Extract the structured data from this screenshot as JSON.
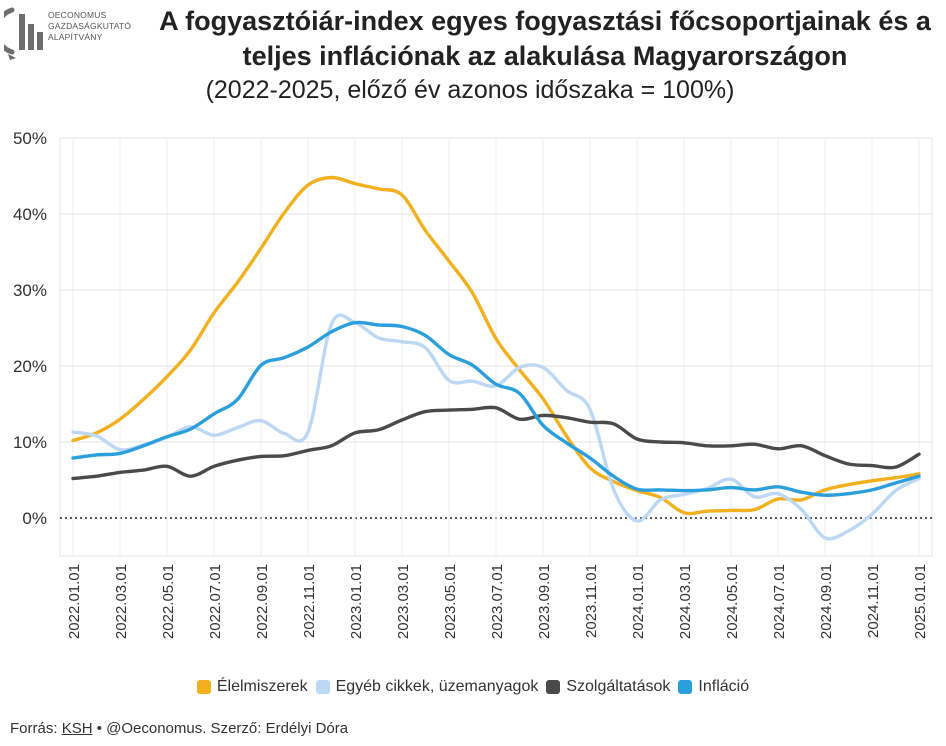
{
  "logo": {
    "lines": [
      "OECONOMUS",
      "GAZDASÁGKUTATÓ",
      "ALAPÍTVÁNY"
    ]
  },
  "header": {
    "title_line1": "A fogyasztóiár-index egyes fogyasztási főcsoportjainak és a",
    "title_line2": "teljes inflációnak az alakulása Magyarországon",
    "subtitle": "(2022-2025, előző év azonos időszaka = 100%)"
  },
  "footer": {
    "source_prefix": "Forrás:",
    "source_link": "KSH",
    "source_rest": "• @Oeconomus. Szerző: Erdélyi Dóra"
  },
  "chart_data": {
    "type": "line",
    "x": [
      "2022.01.01",
      "2022.02.01",
      "2022.03.01",
      "2022.04.01",
      "2022.05.01",
      "2022.06.01",
      "2022.07.01",
      "2022.08.01",
      "2022.09.01",
      "2022.10.01",
      "2022.11.01",
      "2022.12.01",
      "2023.01.01",
      "2023.02.01",
      "2023.03.01",
      "2023.04.01",
      "2023.05.01",
      "2023.06.01",
      "2023.07.01",
      "2023.08.01",
      "2023.09.01",
      "2023.10.01",
      "2023.11.01",
      "2023.12.01",
      "2024.01.01",
      "2024.02.01",
      "2024.03.01",
      "2024.04.01",
      "2024.05.01",
      "2024.06.01",
      "2024.07.01",
      "2024.08.01",
      "2024.09.01",
      "2024.10.01",
      "2024.11.01",
      "2024.12.01",
      "2025.01.01"
    ],
    "tick_labels": [
      "2022.01.01",
      "2022.03.01",
      "2022.05.01",
      "2022.07.01",
      "2022.09.01",
      "2022.11.01",
      "2023.01.01",
      "2023.03.01",
      "2023.05.01",
      "2023.07.01",
      "2023.09.01",
      "2023.11.01",
      "2024.01.01",
      "2024.03.01",
      "2024.05.01",
      "2024.07.01",
      "2024.09.01",
      "2024.11.01",
      "2025.01.01"
    ],
    "ylim": [
      -5,
      50
    ],
    "yticks": [
      0,
      10,
      20,
      30,
      40,
      50
    ],
    "ytick_labels": [
      "0%",
      "10%",
      "20%",
      "30%",
      "40%",
      "50%"
    ],
    "zero_line": "dotted",
    "grid": "horizontal",
    "legend_position": "bottom",
    "series": [
      {
        "name": "Élelmiszerek",
        "color": "#f2b01e",
        "values": [
          10.2,
          11.2,
          13.0,
          15.6,
          18.6,
          22.1,
          27.0,
          31.0,
          35.5,
          40.2,
          43.8,
          44.8,
          44.0,
          43.3,
          42.5,
          37.8,
          33.8,
          29.6,
          23.6,
          19.5,
          15.7,
          10.8,
          6.6,
          4.8,
          3.6,
          2.7,
          0.7,
          0.9,
          1.0,
          1.1,
          2.5,
          2.4,
          3.7,
          4.4,
          4.9,
          5.3,
          5.8
        ]
      },
      {
        "name": "Egyéb cikkek, üzemanyagok",
        "color": "#bcd8f5",
        "values": [
          11.3,
          10.8,
          9.0,
          9.6,
          10.6,
          12.0,
          10.9,
          11.9,
          12.8,
          11.1,
          11.3,
          25.5,
          25.7,
          23.7,
          23.2,
          22.4,
          18.1,
          18.0,
          17.4,
          19.8,
          19.8,
          16.8,
          14.3,
          3.8,
          -0.4,
          2.4,
          3.1,
          3.9,
          5.1,
          2.8,
          3.2,
          1.1,
          -2.6,
          -1.7,
          0.5,
          3.6,
          5.2
        ]
      },
      {
        "name": "Szolgáltatások",
        "color": "#4a4a4a",
        "values": [
          5.2,
          5.5,
          6.0,
          6.3,
          6.8,
          5.5,
          6.8,
          7.6,
          8.1,
          8.2,
          8.9,
          9.5,
          11.2,
          11.6,
          12.9,
          14.0,
          14.2,
          14.3,
          14.5,
          13.0,
          13.5,
          13.2,
          12.6,
          12.4,
          10.4,
          10.0,
          9.9,
          9.5,
          9.5,
          9.7,
          9.1,
          9.5,
          8.2,
          7.1,
          6.9,
          6.7,
          8.4
        ]
      },
      {
        "name": "Infláció",
        "color": "#2b9fdc",
        "values": [
          7.9,
          8.3,
          8.5,
          9.5,
          10.7,
          11.7,
          13.7,
          15.6,
          20.1,
          21.1,
          22.5,
          24.5,
          25.7,
          25.4,
          25.2,
          24.0,
          21.5,
          20.1,
          17.6,
          16.4,
          12.2,
          9.9,
          7.9,
          5.5,
          3.8,
          3.7,
          3.6,
          3.7,
          4.0,
          3.7,
          4.1,
          3.4,
          3.0,
          3.2,
          3.7,
          4.6,
          5.5
        ]
      }
    ]
  }
}
